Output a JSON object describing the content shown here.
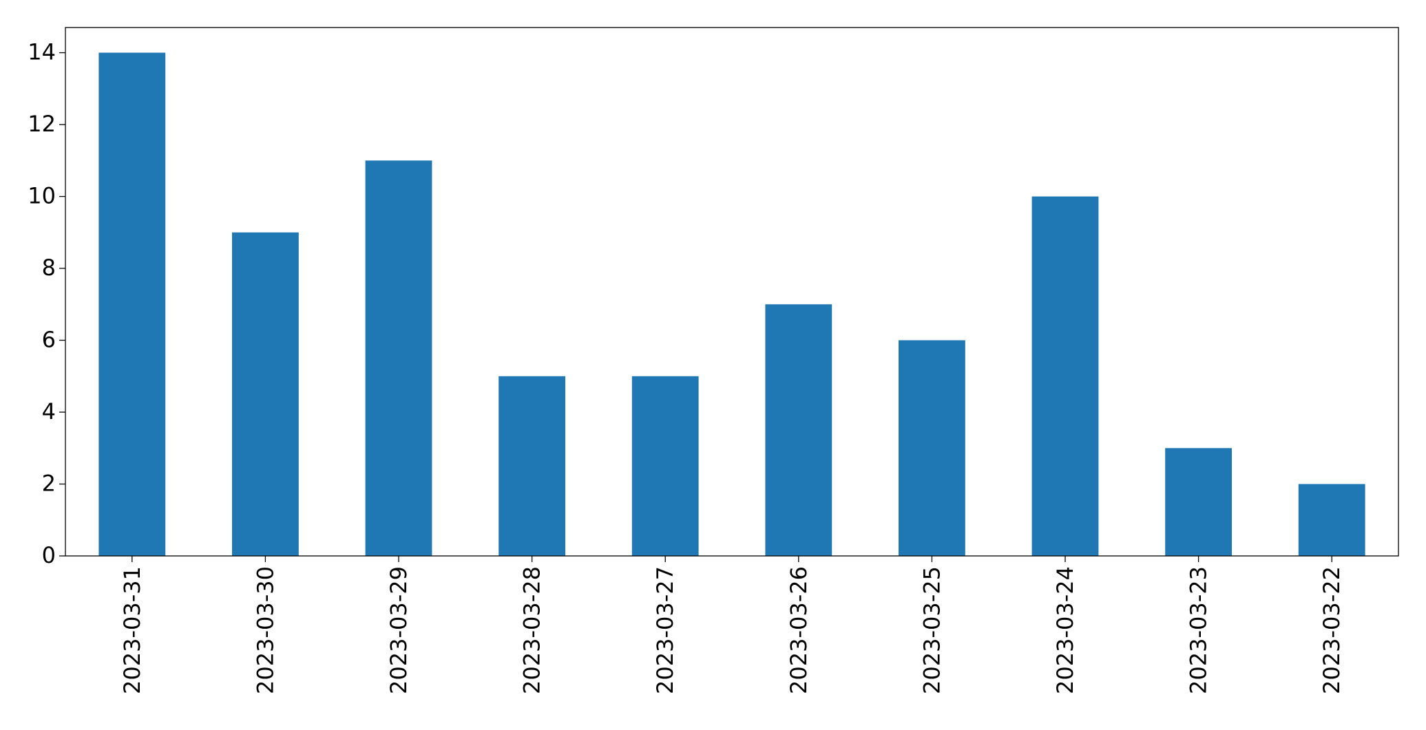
{
  "chart_data": {
    "type": "bar",
    "categories": [
      "2023-03-31",
      "2023-03-30",
      "2023-03-29",
      "2023-03-28",
      "2023-03-27",
      "2023-03-26",
      "2023-03-25",
      "2023-03-24",
      "2023-03-23",
      "2023-03-22"
    ],
    "values": [
      14,
      9,
      11,
      5,
      5,
      7,
      6,
      10,
      3,
      2
    ],
    "color": "#1f77b4",
    "ylim": [
      0,
      14.7
    ],
    "yticks": [
      0,
      2,
      4,
      6,
      8,
      10,
      12,
      14
    ],
    "grid": false
  }
}
